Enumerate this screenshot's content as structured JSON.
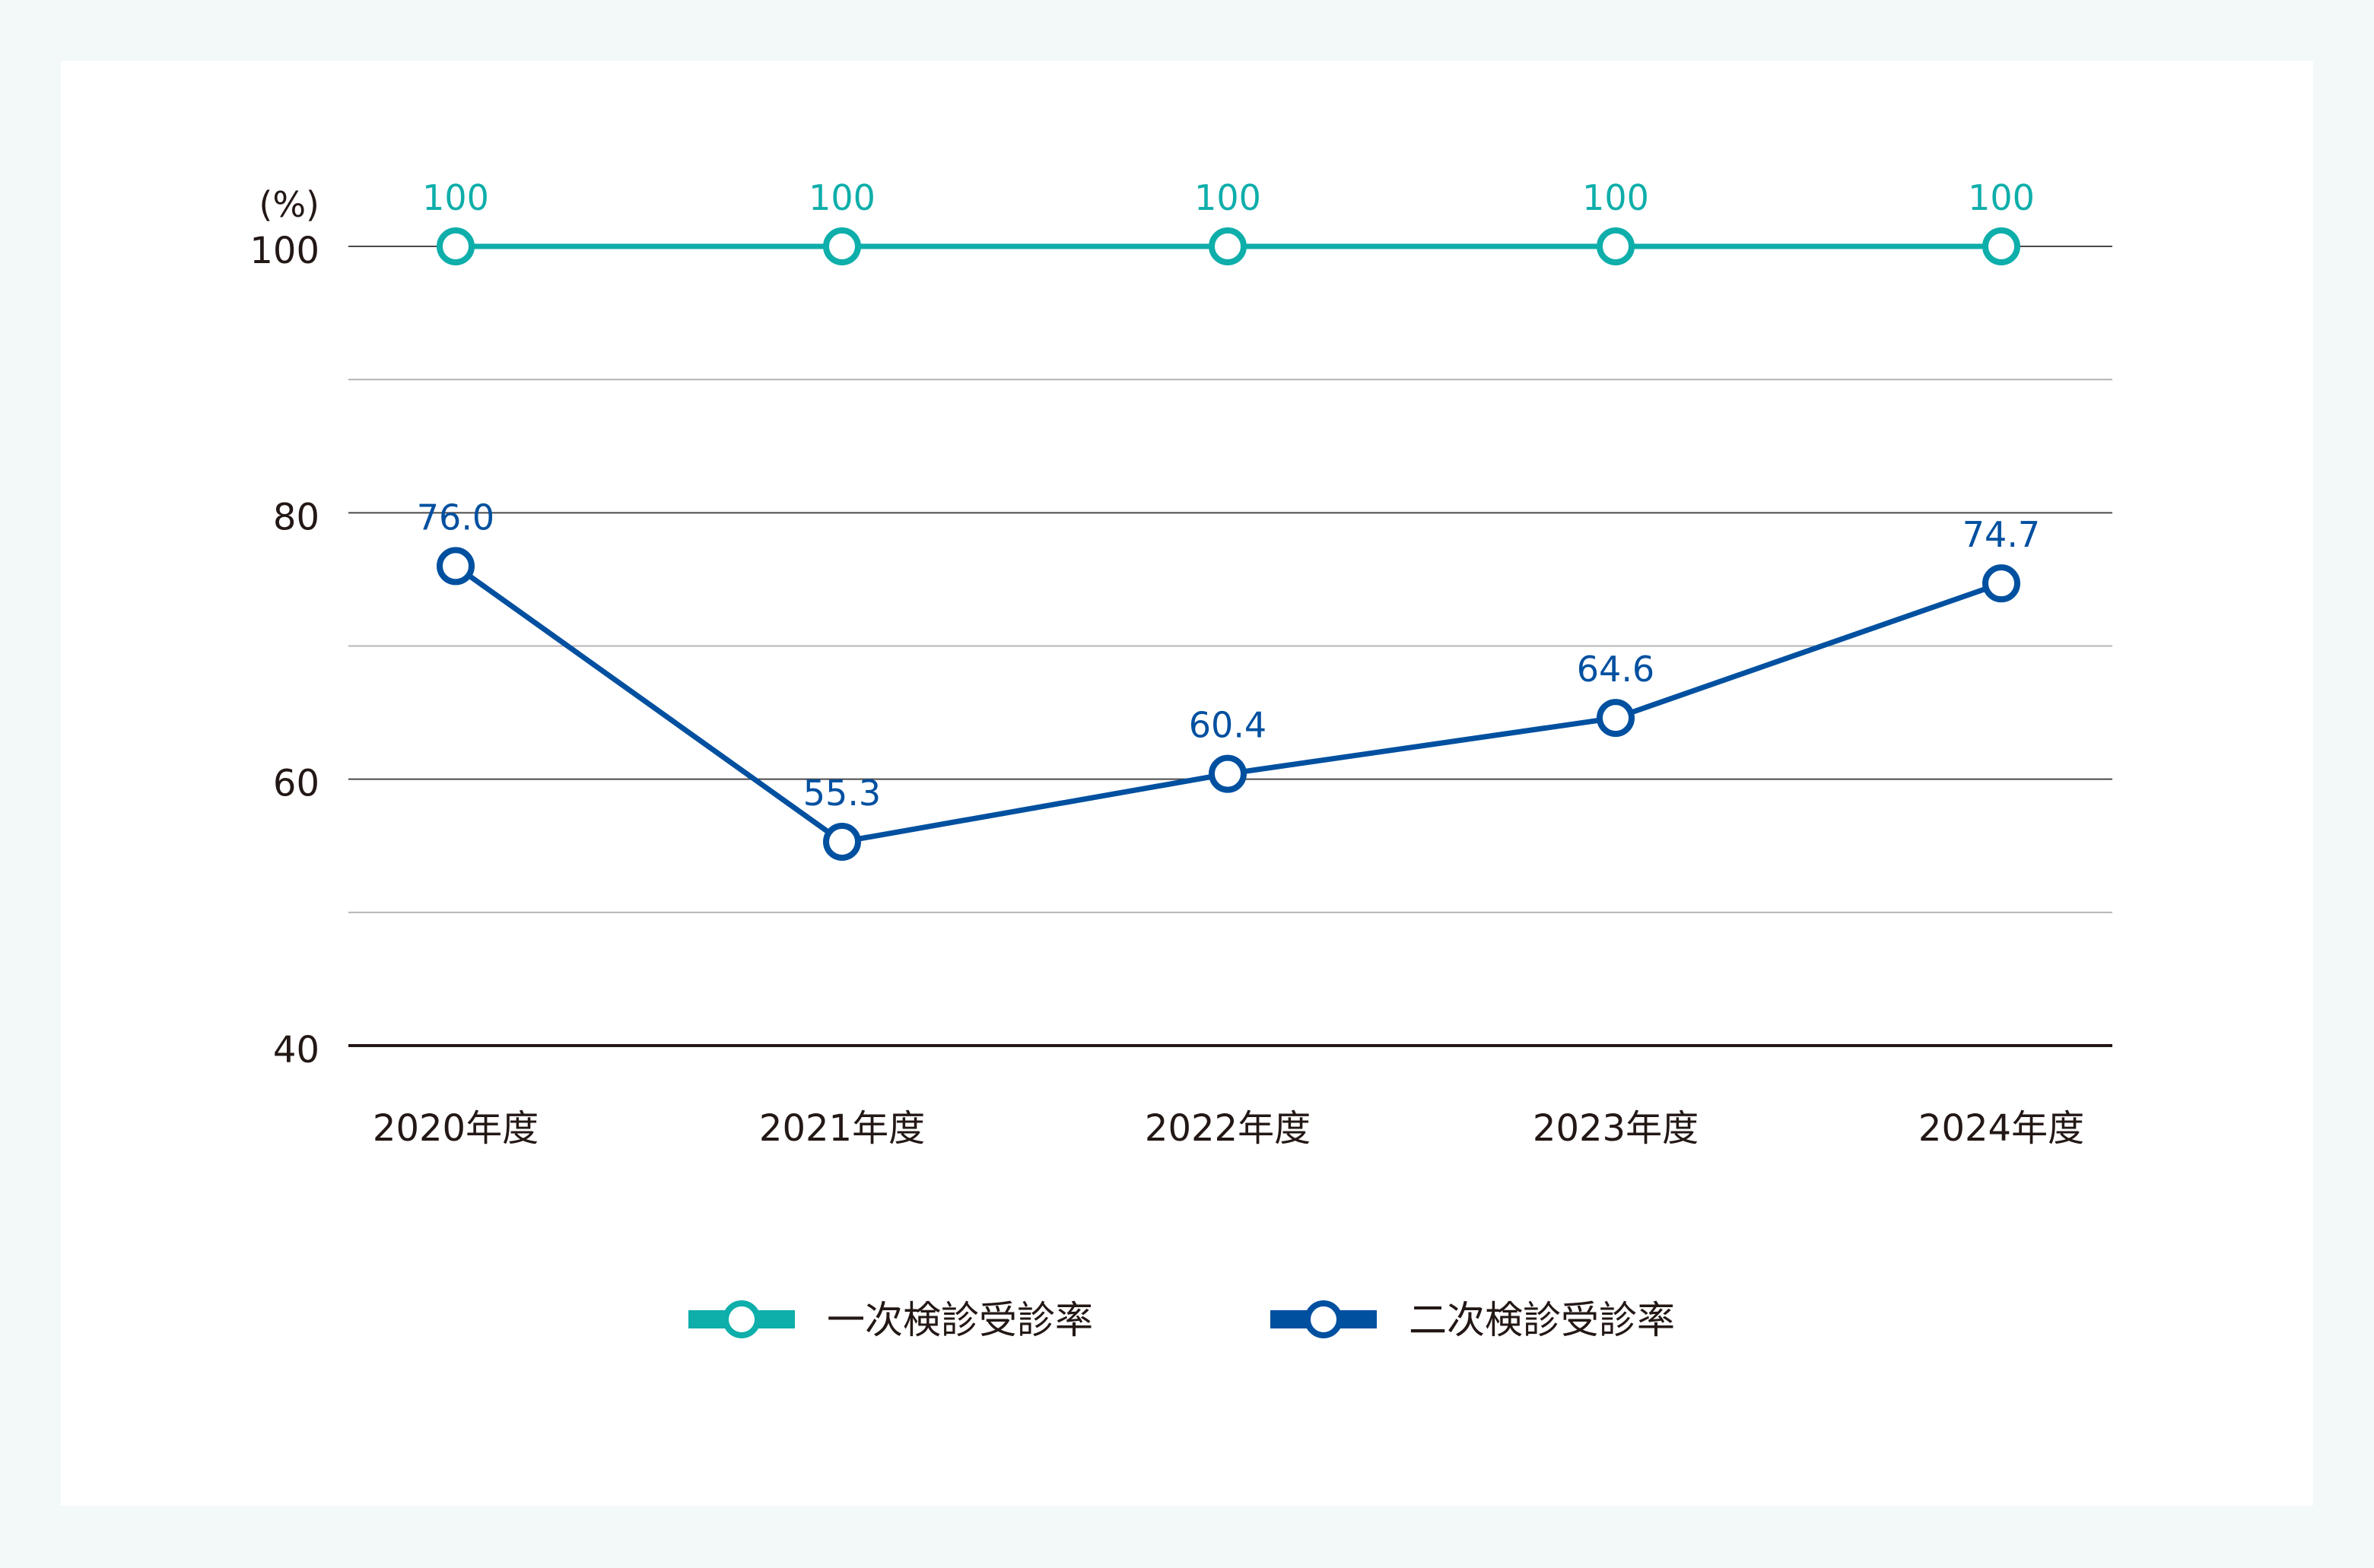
{
  "chart_data": {
    "type": "line",
    "title": "",
    "ylabel": "(%)",
    "xlabel": "",
    "categories": [
      "2020年度",
      "2021年度",
      "2022年度",
      "2023年度",
      "2024年度"
    ],
    "ylim": [
      40,
      100
    ],
    "yticks": [
      40,
      60,
      80,
      100
    ],
    "ytick_labels": [
      "40",
      "60",
      "80",
      "100"
    ],
    "grid": true,
    "legend_position": "bottom-center",
    "series": [
      {
        "name": "一次検診受診率",
        "color": "#0eaeaa",
        "values": [
          100,
          100,
          100,
          100,
          100
        ],
        "labels": [
          "100",
          "100",
          "100",
          "100",
          "100"
        ]
      },
      {
        "name": "二次検診受診率",
        "color": "#0050a0",
        "values": [
          76.0,
          55.3,
          60.4,
          64.6,
          74.7
        ],
        "labels": [
          "76.0",
          "55.3",
          "60.4",
          "64.6",
          "74.7"
        ]
      }
    ]
  }
}
